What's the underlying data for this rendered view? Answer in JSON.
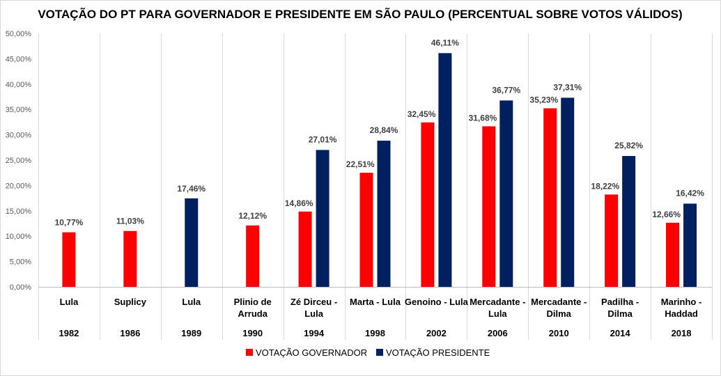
{
  "chart_data": {
    "type": "bar",
    "title": "VOTAÇÃO DO PT PARA GOVERNADOR E PRESIDENTE EM SÃO PAULO (PERCENTUAL SOBRE VOTOS VÁLIDOS)",
    "xlabel": "",
    "ylabel": "",
    "ylim": [
      0,
      50
    ],
    "y_ticks": [
      "0,00%",
      "5,00%",
      "10,00%",
      "15,00%",
      "20,00%",
      "25,00%",
      "30,00%",
      "35,00%",
      "40,00%",
      "45,00%",
      "50,00%"
    ],
    "grid": "vertical category separators",
    "legend_position": "bottom",
    "categories": [
      {
        "name": [
          "Lula"
        ],
        "year": "1982"
      },
      {
        "name": [
          "Suplicy"
        ],
        "year": "1986"
      },
      {
        "name": [
          "Lula"
        ],
        "year": "1989"
      },
      {
        "name": [
          "Plinio de",
          "Arruda"
        ],
        "year": "1990"
      },
      {
        "name": [
          "Zé Dirceu -",
          "Lula"
        ],
        "year": "1994"
      },
      {
        "name": [
          "Marta - Lula"
        ],
        "year": "1998"
      },
      {
        "name": [
          "Genoino - Lula"
        ],
        "year": "2002"
      },
      {
        "name": [
          "Mercadante -",
          "Lula"
        ],
        "year": "2006"
      },
      {
        "name": [
          "Mercadante -",
          "Dilma"
        ],
        "year": "2010"
      },
      {
        "name": [
          "Padilha -",
          "Dilma"
        ],
        "year": "2014"
      },
      {
        "name": [
          "Marinho -",
          "Haddad"
        ],
        "year": "2018"
      }
    ],
    "series": [
      {
        "name": "VOTAÇÃO GOVERNADOR",
        "color": "#ff0000",
        "values": [
          10.77,
          11.03,
          null,
          12.12,
          14.86,
          22.51,
          32.45,
          31.68,
          35.23,
          18.22,
          12.66
        ],
        "labels": [
          "10,77%",
          "11,03%",
          null,
          "12,12%",
          "14,86%",
          "22,51%",
          "32,45%",
          "31,68%",
          "35,23%",
          "18,22%",
          "12,66%"
        ]
      },
      {
        "name": "VOTAÇÃO PRESIDENTE",
        "color": "#002060",
        "values": [
          null,
          null,
          17.46,
          null,
          27.01,
          28.84,
          46.11,
          36.77,
          37.31,
          25.82,
          16.42
        ],
        "labels": [
          null,
          null,
          "17,46%",
          null,
          "27,01%",
          "28,84%",
          "46,11%",
          "36,77%",
          "37,31%",
          "25,82%",
          "16,42%"
        ]
      }
    ]
  }
}
